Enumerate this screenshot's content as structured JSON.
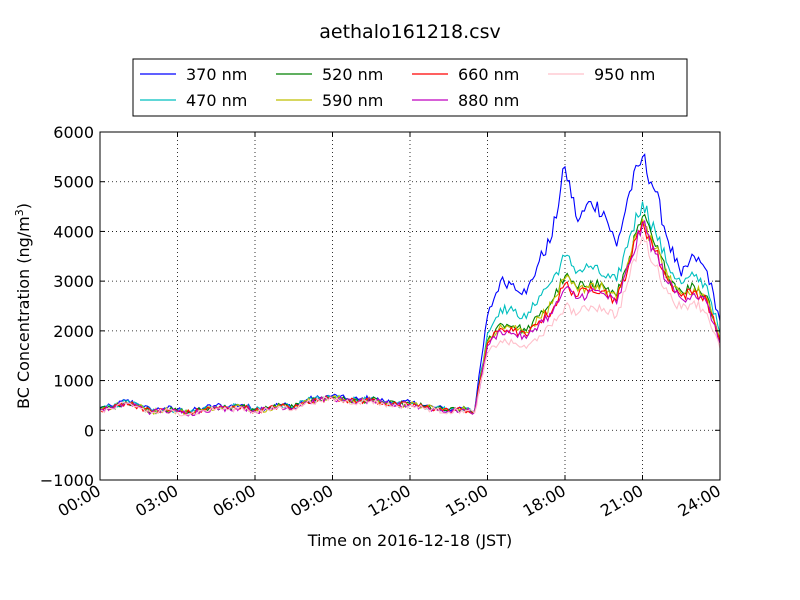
{
  "chart_data": {
    "type": "line",
    "title": "aethalo161218.csv",
    "xlabel": "Time on 2016-12-18 (JST)",
    "ylabel_main": "BC Concentration (ng/m",
    "ylabel_sup": "3",
    "ylabel_end": ")",
    "xlim": [
      "00:00",
      "24:00"
    ],
    "ylim": [
      -1000,
      6000
    ],
    "x_ticks": [
      "00:00",
      "03:00",
      "06:00",
      "09:00",
      "12:00",
      "15:00",
      "18:00",
      "21:00",
      "24:00"
    ],
    "y_ticks": [
      "6000",
      "5000",
      "4000",
      "3000",
      "2000",
      "1000",
      "0",
      "−1000"
    ],
    "grid": true,
    "legend_position": "top (above plot, outside axes)",
    "x": [
      "00:00",
      "00:30",
      "01:00",
      "01:30",
      "02:00",
      "02:30",
      "03:00",
      "03:30",
      "04:00",
      "04:30",
      "05:00",
      "05:30",
      "06:00",
      "06:30",
      "07:00",
      "07:30",
      "08:00",
      "08:30",
      "09:00",
      "09:30",
      "10:00",
      "10:30",
      "11:00",
      "11:30",
      "12:00",
      "12:30",
      "13:00",
      "13:30",
      "14:00",
      "14:30",
      "15:00",
      "15:30",
      "16:00",
      "16:30",
      "17:00",
      "17:30",
      "18:00",
      "18:30",
      "19:00",
      "19:30",
      "20:00",
      "20:30",
      "21:00",
      "21:30",
      "22:00",
      "22:30",
      "23:00",
      "23:30",
      "24:00"
    ],
    "series": [
      {
        "name": "370 nm",
        "color": "#0000ff",
        "values": [
          450,
          480,
          600,
          520,
          400,
          450,
          420,
          380,
          450,
          500,
          480,
          520,
          420,
          460,
          520,
          480,
          620,
          650,
          700,
          640,
          620,
          650,
          580,
          550,
          560,
          500,
          460,
          420,
          450,
          400,
          2300,
          3000,
          2950,
          2750,
          3400,
          3900,
          5300,
          4200,
          4600,
          4400,
          3700,
          4800,
          5500,
          4800,
          3800,
          3100,
          3500,
          3200,
          2200
        ]
      },
      {
        "name": "470 nm",
        "color": "#00bfbf",
        "values": [
          440,
          470,
          580,
          500,
          390,
          430,
          400,
          370,
          430,
          480,
          460,
          500,
          410,
          450,
          510,
          470,
          600,
          630,
          680,
          620,
          600,
          630,
          560,
          530,
          540,
          490,
          450,
          410,
          440,
          390,
          1950,
          2450,
          2400,
          2250,
          2700,
          3000,
          3500,
          3200,
          3300,
          3100,
          3000,
          3900,
          4600,
          4000,
          3300,
          2950,
          3100,
          2900,
          1950
        ]
      },
      {
        "name": "520 nm",
        "color": "#008000",
        "values": [
          430,
          460,
          570,
          490,
          380,
          420,
          390,
          360,
          420,
          470,
          450,
          490,
          400,
          440,
          500,
          460,
          590,
          620,
          670,
          610,
          590,
          620,
          550,
          520,
          530,
          480,
          440,
          400,
          430,
          380,
          1800,
          2150,
          2100,
          2000,
          2300,
          2600,
          3100,
          2850,
          3000,
          2900,
          2700,
          3500,
          4300,
          3700,
          3100,
          2800,
          2900,
          2700,
          1850
        ]
      },
      {
        "name": "590 nm",
        "color": "#bfbf00",
        "values": [
          425,
          455,
          565,
          485,
          375,
          415,
          385,
          355,
          415,
          465,
          445,
          485,
          395,
          435,
          495,
          455,
          585,
          615,
          665,
          605,
          585,
          615,
          545,
          515,
          525,
          475,
          435,
          395,
          425,
          375,
          1780,
          2120,
          2080,
          1980,
          2260,
          2550,
          3050,
          2800,
          2950,
          2850,
          2650,
          3450,
          4250,
          3650,
          3050,
          2750,
          2850,
          2650,
          1820
        ]
      },
      {
        "name": "660 nm",
        "color": "#ff0000",
        "values": [
          420,
          450,
          560,
          480,
          370,
          410,
          380,
          350,
          410,
          460,
          440,
          480,
          390,
          430,
          490,
          450,
          580,
          610,
          660,
          600,
          580,
          610,
          540,
          510,
          520,
          470,
          430,
          390,
          420,
          370,
          1750,
          2050,
          2000,
          1900,
          2200,
          2400,
          2950,
          2700,
          2900,
          2800,
          2600,
          3400,
          4200,
          3600,
          3000,
          2700,
          2800,
          2600,
          1800
        ]
      },
      {
        "name": "880 nm",
        "color": "#bf00bf",
        "values": [
          410,
          440,
          550,
          470,
          360,
          400,
          370,
          340,
          400,
          450,
          430,
          470,
          380,
          420,
          480,
          440,
          570,
          600,
          650,
          590,
          570,
          600,
          530,
          500,
          510,
          460,
          420,
          380,
          410,
          360,
          1700,
          2000,
          1950,
          1850,
          2150,
          2350,
          2850,
          2650,
          2800,
          2750,
          2550,
          3350,
          4150,
          3550,
          2950,
          2650,
          2750,
          2550,
          1750
        ]
      },
      {
        "name": "950 nm",
        "color": "#ffc0cb",
        "values": [
          400,
          430,
          540,
          460,
          350,
          390,
          360,
          330,
          390,
          440,
          420,
          460,
          370,
          410,
          470,
          430,
          560,
          590,
          640,
          580,
          560,
          590,
          520,
          490,
          500,
          450,
          410,
          370,
          400,
          350,
          1550,
          1800,
          1750,
          1650,
          1900,
          2100,
          2500,
          2350,
          2500,
          2450,
          2300,
          3100,
          3900,
          3300,
          2750,
          2450,
          2600,
          2350,
          1650
        ]
      }
    ]
  }
}
